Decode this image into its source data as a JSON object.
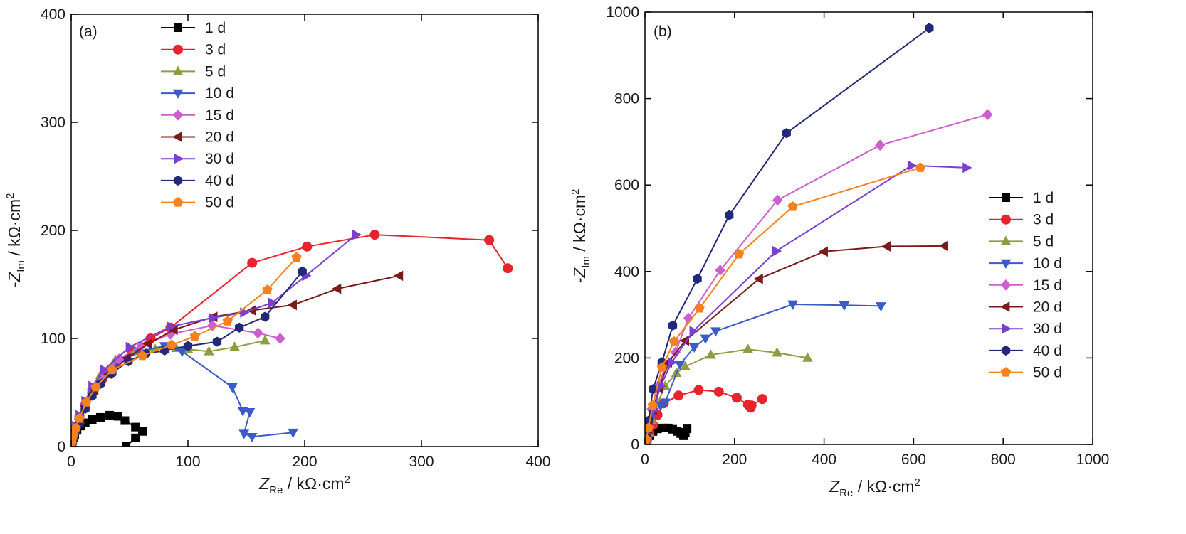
{
  "figure": {
    "panels": [
      {
        "label": "(a)"
      },
      {
        "label": "(b)"
      }
    ]
  },
  "chart_data": [
    {
      "type": "line",
      "panel": "(a)",
      "xlabel": {
        "main": "Z",
        "sub": "Re",
        "unit": " / kΩ·cm",
        "sup": "2"
      },
      "ylabel": {
        "main": "-Z",
        "sub": "Im",
        "unit": " / kΩ·cm",
        "sup": "2"
      },
      "xlim": [
        0,
        400
      ],
      "ylim": [
        0,
        400
      ],
      "xticks": [
        0,
        100,
        200,
        300,
        400
      ],
      "yticks": [
        0,
        100,
        200,
        300,
        400
      ],
      "grid": false,
      "legend_position": "top-left",
      "series": [
        {
          "name": "1 d",
          "color": "#000000",
          "marker": "square",
          "points": [
            [
              0.5,
              2
            ],
            [
              1,
              5
            ],
            [
              2,
              8
            ],
            [
              3,
              11
            ],
            [
              5,
              15
            ],
            [
              8,
              19
            ],
            [
              12,
              22
            ],
            [
              18,
              25
            ],
            [
              25,
              27
            ],
            [
              33,
              29
            ],
            [
              40,
              28
            ],
            [
              46,
              24
            ],
            [
              55,
              18
            ],
            [
              61,
              14
            ],
            [
              55,
              8
            ],
            [
              47,
              0
            ]
          ]
        },
        {
          "name": "3 d",
          "color": "#e8232b",
          "marker": "circle",
          "points": [
            [
              0.5,
              3
            ],
            [
              1,
              7
            ],
            [
              2,
              11
            ],
            [
              4,
              17
            ],
            [
              7,
              26
            ],
            [
              12,
              38
            ],
            [
              18,
              50
            ],
            [
              27,
              63
            ],
            [
              38,
              76
            ],
            [
              52,
              88
            ],
            [
              68,
              100
            ],
            [
              85,
              110
            ],
            [
              155,
              170
            ],
            [
              202,
              185
            ],
            [
              260,
              196
            ],
            [
              358,
              191
            ],
            [
              374,
              165
            ]
          ]
        },
        {
          "name": "5 d",
          "color": "#8e9c45",
          "marker": "triangle-up",
          "points": [
            [
              0.5,
              3
            ],
            [
              1,
              6
            ],
            [
              2,
              10
            ],
            [
              4,
              15
            ],
            [
              7,
              25
            ],
            [
              12,
              38
            ],
            [
              18,
              52
            ],
            [
              25,
              66
            ],
            [
              38,
              80
            ],
            [
              55,
              88
            ],
            [
              72,
              90
            ],
            [
              90,
              91
            ],
            [
              100,
              90
            ],
            [
              118,
              88
            ],
            [
              140,
              92
            ],
            [
              166,
              98
            ]
          ]
        },
        {
          "name": "10 d",
          "color": "#3b5bc6",
          "marker": "triangle-down",
          "points": [
            [
              0.5,
              3
            ],
            [
              1,
              6
            ],
            [
              2,
              10
            ],
            [
              4,
              16
            ],
            [
              7,
              25
            ],
            [
              12,
              37
            ],
            [
              18,
              50
            ],
            [
              27,
              63
            ],
            [
              40,
              77
            ],
            [
              58,
              88
            ],
            [
              80,
              93
            ],
            [
              95,
              88
            ],
            [
              138,
              55
            ],
            [
              147,
              33
            ],
            [
              153,
              32
            ],
            [
              148,
              12
            ],
            [
              155,
              9
            ],
            [
              190,
              13
            ]
          ]
        },
        {
          "name": "15 d",
          "color": "#cc5fcc",
          "marker": "diamond",
          "points": [
            [
              0.5,
              3
            ],
            [
              1,
              7
            ],
            [
              2,
              11
            ],
            [
              4,
              17
            ],
            [
              7,
              27
            ],
            [
              12,
              40
            ],
            [
              18,
              53
            ],
            [
              28,
              67
            ],
            [
              41,
              81
            ],
            [
              60,
              93
            ],
            [
              85,
              104
            ],
            [
              121,
              112
            ],
            [
              160,
              105
            ],
            [
              179,
              100
            ]
          ]
        },
        {
          "name": "20 d",
          "color": "#7a1b1b",
          "marker": "triangle-left",
          "points": [
            [
              0.5,
              3
            ],
            [
              1,
              6
            ],
            [
              2,
              10
            ],
            [
              4,
              16
            ],
            [
              7,
              25
            ],
            [
              12,
              38
            ],
            [
              20,
              52
            ],
            [
              32,
              67
            ],
            [
              48,
              82
            ],
            [
              66,
              95
            ],
            [
              88,
              108
            ],
            [
              122,
              120
            ],
            [
              155,
              126
            ],
            [
              190,
              131
            ],
            [
              228,
              146
            ],
            [
              281,
              158
            ]
          ]
        },
        {
          "name": "30 d",
          "color": "#7b3fcf",
          "marker": "triangle-right",
          "points": [
            [
              0.5,
              3
            ],
            [
              1,
              7
            ],
            [
              2,
              12
            ],
            [
              4,
              19
            ],
            [
              7,
              29
            ],
            [
              12,
              42
            ],
            [
              18,
              56
            ],
            [
              28,
              71
            ],
            [
              50,
              92
            ],
            [
              85,
              111
            ],
            [
              121,
              119
            ],
            [
              148,
              124
            ],
            [
              172,
              133
            ],
            [
              201,
              158
            ],
            [
              244,
              196
            ]
          ]
        },
        {
          "name": "40 d",
          "color": "#23297a",
          "marker": "hexagon",
          "points": [
            [
              0.5,
              2
            ],
            [
              1,
              5
            ],
            [
              2,
              8
            ],
            [
              4,
              14
            ],
            [
              7,
              21
            ],
            [
              12,
              35
            ],
            [
              18,
              47
            ],
            [
              25,
              58
            ],
            [
              35,
              68
            ],
            [
              49,
              79
            ],
            [
              64,
              86
            ],
            [
              80,
              89
            ],
            [
              100,
              93
            ],
            [
              125,
              97
            ],
            [
              144,
              110
            ],
            [
              166,
              120
            ],
            [
              198,
              162
            ]
          ]
        },
        {
          "name": "50 d",
          "color": "#f5821f",
          "marker": "pentagon",
          "points": [
            [
              0.5,
              3
            ],
            [
              1,
              7
            ],
            [
              2,
              11
            ],
            [
              4,
              17
            ],
            [
              7,
              26
            ],
            [
              13,
              41
            ],
            [
              21,
              55
            ],
            [
              35,
              71
            ],
            [
              61,
              84
            ],
            [
              86,
              94
            ],
            [
              106,
              102
            ],
            [
              134,
              116
            ],
            [
              168,
              145
            ],
            [
              193,
              175
            ]
          ]
        }
      ]
    },
    {
      "type": "line",
      "panel": "(b)",
      "xlabel": {
        "main": "Z",
        "sub": "Re",
        "unit": " / kΩ·cm",
        "sup": "2"
      },
      "ylabel": {
        "main": "-Z",
        "sub": "Im",
        "unit": " / kΩ·cm",
        "sup": "2"
      },
      "xlim": [
        0,
        1000
      ],
      "ylim": [
        0,
        1000
      ],
      "xticks": [
        0,
        200,
        400,
        600,
        800,
        1000
      ],
      "yticks": [
        0,
        200,
        400,
        600,
        800,
        1000
      ],
      "grid": false,
      "legend_position": "right-middle",
      "series": [
        {
          "name": "1 d",
          "color": "#000000",
          "marker": "square",
          "points": [
            [
              2,
              3
            ],
            [
              5,
              10
            ],
            [
              10,
              20
            ],
            [
              18,
              30
            ],
            [
              28,
              36
            ],
            [
              40,
              38
            ],
            [
              52,
              38
            ],
            [
              62,
              35
            ],
            [
              72,
              30
            ],
            [
              80,
              25
            ],
            [
              86,
              20
            ],
            [
              90,
              28
            ],
            [
              94,
              36
            ]
          ]
        },
        {
          "name": "3 d",
          "color": "#e8232b",
          "marker": "circle",
          "points": [
            [
              2,
              5
            ],
            [
              5,
              12
            ],
            [
              10,
              25
            ],
            [
              18,
              45
            ],
            [
              28,
              68
            ],
            [
              42,
              95
            ],
            [
              75,
              113
            ],
            [
              120,
              126
            ],
            [
              165,
              122
            ],
            [
              205,
              108
            ],
            [
              230,
              92
            ],
            [
              236,
              85
            ],
            [
              238,
              90
            ],
            [
              262,
              105
            ]
          ]
        },
        {
          "name": "5 d",
          "color": "#8e9c45",
          "marker": "triangle-up",
          "points": [
            [
              3,
              10
            ],
            [
              8,
              28
            ],
            [
              16,
              55
            ],
            [
              28,
              95
            ],
            [
              45,
              135
            ],
            [
              70,
              165
            ],
            [
              90,
              180
            ],
            [
              147,
              207
            ],
            [
              230,
              220
            ],
            [
              295,
              212
            ],
            [
              363,
              200
            ]
          ]
        },
        {
          "name": "10 d",
          "color": "#3b5bc6",
          "marker": "triangle-down",
          "points": [
            [
              3,
              12
            ],
            [
              8,
              35
            ],
            [
              18,
              70
            ],
            [
              35,
              90
            ],
            [
              45,
              97
            ],
            [
              78,
              185
            ],
            [
              110,
              225
            ],
            [
              135,
              245
            ],
            [
              158,
              262
            ],
            [
              330,
              324
            ],
            [
              445,
              322
            ],
            [
              527,
              320
            ]
          ]
        },
        {
          "name": "15 d",
          "color": "#cc5fcc",
          "marker": "diamond",
          "points": [
            [
              3,
              15
            ],
            [
              8,
              42
            ],
            [
              15,
              82
            ],
            [
              28,
              130
            ],
            [
              45,
              178
            ],
            [
              68,
              213
            ],
            [
              97,
              292
            ],
            [
              168,
              403
            ],
            [
              296,
              565
            ],
            [
              525,
              692
            ],
            [
              765,
              763
            ]
          ]
        },
        {
          "name": "20 d",
          "color": "#7a1b1b",
          "marker": "triangle-left",
          "points": [
            [
              3,
              12
            ],
            [
              8,
              35
            ],
            [
              18,
              80
            ],
            [
              32,
              130
            ],
            [
              52,
              190
            ],
            [
              90,
              240
            ],
            [
              255,
              383
            ],
            [
              400,
              446
            ],
            [
              540,
              458
            ],
            [
              668,
              459
            ]
          ]
        },
        {
          "name": "30 d",
          "color": "#7b3fcf",
          "marker": "triangle-right",
          "points": [
            [
              3,
              12
            ],
            [
              8,
              38
            ],
            [
              18,
              78
            ],
            [
              35,
              135
            ],
            [
              60,
              190
            ],
            [
              108,
              262
            ],
            [
              293,
              447
            ],
            [
              595,
              645
            ],
            [
              718,
              640
            ]
          ]
        },
        {
          "name": "40 d",
          "color": "#23297a",
          "marker": "hexagon",
          "points": [
            [
              3,
              18
            ],
            [
              8,
              55
            ],
            [
              18,
              128
            ],
            [
              38,
              190
            ],
            [
              62,
              275
            ],
            [
              117,
              383
            ],
            [
              188,
              530
            ],
            [
              316,
              720
            ],
            [
              635,
              963
            ]
          ]
        },
        {
          "name": "50 d",
          "color": "#f5821f",
          "marker": "pentagon",
          "points": [
            [
              3,
              12
            ],
            [
              8,
              38
            ],
            [
              17,
              90
            ],
            [
              38,
              178
            ],
            [
              65,
              238
            ],
            [
              122,
              315
            ],
            [
              210,
              440
            ],
            [
              330,
              550
            ],
            [
              615,
              640
            ]
          ]
        }
      ]
    }
  ]
}
